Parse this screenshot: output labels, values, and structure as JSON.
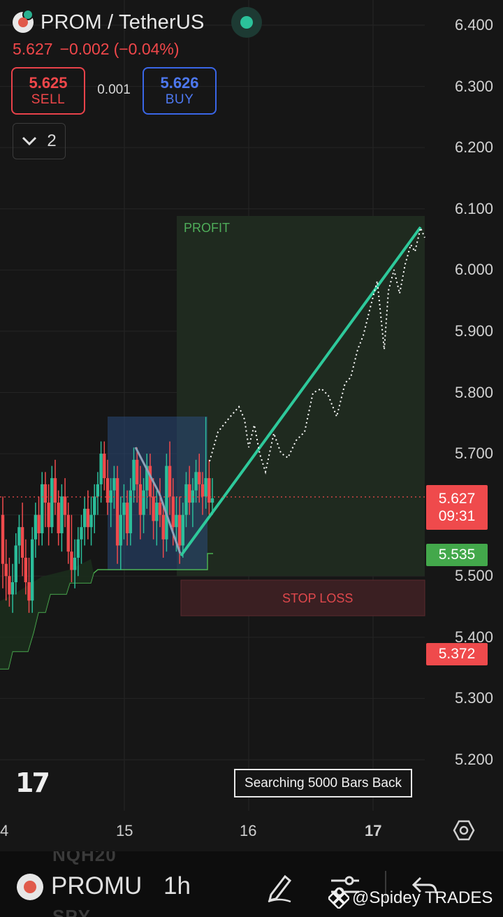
{
  "header": {
    "symbol_title": "PROM / TetherUS",
    "last_price": "5.627",
    "change": "−0.002",
    "change_pct": "(−0.04%)",
    "sell_price": "5.625",
    "sell_label": "SELL",
    "spread": "0.001",
    "buy_price": "5.626",
    "buy_label": "BUY",
    "indicator_count": "2"
  },
  "price_tags": {
    "current_price": "5.627",
    "countdown": "09:31",
    "green_level": "5.535",
    "red_level": "5.372"
  },
  "zones": {
    "profit_label": "PROFIT",
    "stop_label": "STOP LOSS"
  },
  "overlay": {
    "search_label": "Searching 5000 Bars Back",
    "logo_text": "17"
  },
  "bottom_bar": {
    "symbol": "PROMU",
    "interval": "1h",
    "ghost_top": "NQH20",
    "ghost_bottom": "SPY",
    "watermark": "@Spidey TRADES"
  },
  "colors": {
    "background": "#161616",
    "sell": "#f0474a",
    "buy": "#4d78f0",
    "candle_up": "#2bbd9a",
    "candle_down": "#ef4a4c",
    "projection": "#2ec99b",
    "profit_zone": "#1f2b1f",
    "stop_zone": "#3a1f22"
  },
  "chart_data": {
    "type": "candlestick",
    "interval": "1h",
    "yticks": [
      "6.400",
      "6.300",
      "6.200",
      "6.100",
      "6.000",
      "5.900",
      "5.800",
      "5.700",
      "5.500",
      "5.400",
      "5.300",
      "5.200"
    ],
    "ylim": [
      5.12,
      6.44
    ],
    "xticks": [
      "4",
      "15",
      "16",
      "17"
    ],
    "last_price": 5.627,
    "take_profit_top": 6.085,
    "entry_zone": [
      5.505,
      5.535
    ],
    "stop_zone": [
      5.435,
      5.49
    ],
    "projection_line": [
      [
        5.53,
        5.535
      ],
      [
        6.07,
        6.07
      ]
    ],
    "candles_ohlc": [
      [
        5.6,
        5.63,
        5.48,
        5.52
      ],
      [
        5.52,
        5.56,
        5.46,
        5.5
      ],
      [
        5.5,
        5.53,
        5.45,
        5.47
      ],
      [
        5.47,
        5.52,
        5.44,
        5.49
      ],
      [
        5.49,
        5.57,
        5.47,
        5.55
      ],
      [
        5.55,
        5.6,
        5.52,
        5.58
      ],
      [
        5.58,
        5.62,
        5.5,
        5.53
      ],
      [
        5.53,
        5.56,
        5.47,
        5.49
      ],
      [
        5.49,
        5.53,
        5.44,
        5.46
      ],
      [
        5.46,
        5.58,
        5.44,
        5.56
      ],
      [
        5.56,
        5.62,
        5.53,
        5.6
      ],
      [
        5.6,
        5.63,
        5.55,
        5.57
      ],
      [
        5.57,
        5.67,
        5.55,
        5.65
      ],
      [
        5.65,
        5.67,
        5.58,
        5.62
      ],
      [
        5.62,
        5.65,
        5.55,
        5.58
      ],
      [
        5.58,
        5.68,
        5.57,
        5.66
      ],
      [
        5.66,
        5.69,
        5.6,
        5.62
      ],
      [
        5.62,
        5.64,
        5.55,
        5.57
      ],
      [
        5.57,
        5.65,
        5.54,
        5.63
      ],
      [
        5.63,
        5.66,
        5.58,
        5.6
      ],
      [
        5.6,
        5.62,
        5.52,
        5.54
      ],
      [
        5.54,
        5.6,
        5.49,
        5.51
      ],
      [
        5.51,
        5.56,
        5.48,
        5.53
      ],
      [
        5.53,
        5.58,
        5.5,
        5.56
      ],
      [
        5.56,
        5.6,
        5.52,
        5.58
      ],
      [
        5.58,
        5.63,
        5.55,
        5.61
      ],
      [
        5.61,
        5.64,
        5.56,
        5.58
      ],
      [
        5.58,
        5.63,
        5.55,
        5.6
      ],
      [
        5.6,
        5.65,
        5.57,
        5.63
      ],
      [
        5.63,
        5.67,
        5.6,
        5.65
      ],
      [
        5.65,
        5.72,
        5.62,
        5.7
      ],
      [
        5.7,
        5.72,
        5.64,
        5.66
      ],
      [
        5.66,
        5.69,
        5.6,
        5.62
      ],
      [
        5.62,
        5.66,
        5.58,
        5.64
      ],
      [
        5.64,
        5.68,
        5.61,
        5.66
      ],
      [
        5.66,
        5.68,
        5.52,
        5.55
      ],
      [
        5.55,
        5.63,
        5.51,
        5.6
      ],
      [
        5.6,
        5.65,
        5.56,
        5.62
      ],
      [
        5.62,
        5.64,
        5.55,
        5.57
      ],
      [
        5.57,
        5.66,
        5.55,
        5.64
      ],
      [
        5.64,
        5.71,
        5.62,
        5.69
      ],
      [
        5.69,
        5.71,
        5.62,
        5.65
      ],
      [
        5.65,
        5.68,
        5.56,
        5.6
      ],
      [
        5.6,
        5.66,
        5.57,
        5.64
      ],
      [
        5.64,
        5.7,
        5.61,
        5.68
      ],
      [
        5.68,
        5.7,
        5.6,
        5.63
      ],
      [
        5.63,
        5.66,
        5.56,
        5.59
      ],
      [
        5.59,
        5.64,
        5.55,
        5.62
      ],
      [
        5.62,
        5.66,
        5.58,
        5.6
      ],
      [
        5.6,
        5.62,
        5.53,
        5.56
      ],
      [
        5.56,
        5.7,
        5.54,
        5.68
      ],
      [
        5.68,
        5.72,
        5.6,
        5.63
      ],
      [
        5.63,
        5.66,
        5.55,
        5.58
      ],
      [
        5.58,
        5.63,
        5.54,
        5.6
      ],
      [
        5.6,
        5.63,
        5.52,
        5.55
      ],
      [
        5.55,
        5.62,
        5.53,
        5.6
      ],
      [
        5.6,
        5.67,
        5.58,
        5.65
      ],
      [
        5.65,
        5.68,
        5.6,
        5.62
      ],
      [
        5.62,
        5.66,
        5.58,
        5.64
      ],
      [
        5.64,
        5.69,
        5.62,
        5.67
      ],
      [
        5.67,
        5.7,
        5.62,
        5.65
      ],
      [
        5.65,
        5.67,
        5.6,
        5.63
      ],
      [
        5.63,
        5.76,
        5.61,
        5.66
      ],
      [
        5.66,
        5.69,
        5.6,
        5.62
      ],
      [
        5.62,
        5.66,
        5.6,
        5.627
      ]
    ]
  }
}
